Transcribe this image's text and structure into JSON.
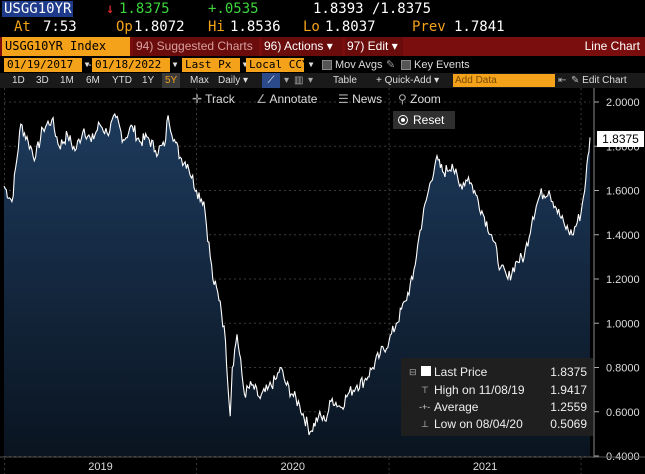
{
  "ticker": {
    "symbol": "USGG10YR",
    "arrow": "↓",
    "last": "1.8375",
    "change": "+.0535",
    "bid_ask": "1.8393 /1.8375",
    "at_label": "At",
    "at_time": "7:53",
    "op_label": "Op",
    "op_value": "1.8072",
    "hi_label": "Hi",
    "hi_value": "1.8536",
    "lo_label": "Lo",
    "lo_value": "1.8037",
    "prev_label": "Prev",
    "prev_value": "1.7841"
  },
  "menubar": {
    "index": "USGG10YR Index",
    "suggested": "94) Suggested Charts",
    "actions": "96) Actions ▾",
    "edit": "97) Edit ▾",
    "title": "Line Chart"
  },
  "fields": {
    "start_date": "01/19/2017",
    "end_date": "01/18/2022",
    "price": "Last Px",
    "currency": "Local CCY",
    "mov_avgs": "Mov Avgs",
    "key_events": "Key Events"
  },
  "ranges": {
    "items": [
      "1D",
      "3D",
      "1M",
      "6M",
      "YTD",
      "1Y",
      "5Y",
      "Max"
    ],
    "selected": "5Y",
    "freq": "Daily ▾",
    "table": "Table",
    "quick_add": "+ Quick-Add ▾",
    "add_data": "Add Data",
    "edit_chart": "Edit Chart"
  },
  "toolbar": {
    "track": "Track",
    "annotate": "Annotate",
    "news": "News",
    "zoom": "Zoom",
    "reset": "Reset"
  },
  "colors": {
    "line": "#ffffff",
    "fill_top": "#1d3a5c",
    "fill_bottom": "#0a1420",
    "grid": "#3a3a3a",
    "menu_bg": "#7a0e0e",
    "field_bg": "#f4a21a"
  },
  "legend": {
    "last_label": "Last Price",
    "last_value": "1.8375",
    "high_label": "High on 11/08/19",
    "high_value": "1.9417",
    "avg_label": "Average",
    "avg_value": "1.2559",
    "low_label": "Low on 08/04/20",
    "low_value": "0.5069"
  },
  "chart_data": {
    "type": "area",
    "y_ticks": [
      "2.0000",
      "1.8000",
      "1.6000",
      "1.4000",
      "1.2000",
      "1.0000",
      "0.8000",
      "0.6000",
      "0.4000"
    ],
    "x_ticks": [
      "2019",
      "2020",
      "2021"
    ],
    "ylim": [
      0.4,
      2.0
    ],
    "last_label": "1.8375",
    "series": [
      {
        "x": [
          "2018-12-31",
          "2019-01-15",
          "2019-02-01",
          "2019-02-15",
          "2019-03-01",
          "2019-03-15",
          "2019-04-01",
          "2019-04-15",
          "2019-05-01",
          "2019-05-15",
          "2019-06-01",
          "2019-06-15",
          "2019-07-01",
          "2019-07-15",
          "2019-08-01",
          "2019-08-15",
          "2019-09-01",
          "2019-09-15",
          "2019-10-01",
          "2019-10-15",
          "2019-11-01",
          "2019-11-08",
          "2019-11-20",
          "2019-12-01",
          "2019-12-15",
          "2020-01-01",
          "2020-01-15",
          "2020-02-01",
          "2020-02-15",
          "2020-02-25",
          "2020-03-05",
          "2020-03-09",
          "2020-03-18",
          "2020-04-01",
          "2020-04-15",
          "2020-05-01",
          "2020-05-15",
          "2020-06-01",
          "2020-06-08",
          "2020-06-20",
          "2020-07-01",
          "2020-07-15",
          "2020-08-04",
          "2020-08-20",
          "2020-09-01",
          "2020-09-15",
          "2020-10-01",
          "2020-10-15",
          "2020-11-01",
          "2020-11-15",
          "2020-12-01",
          "2020-12-15",
          "2021-01-01",
          "2021-01-15",
          "2021-02-01",
          "2021-02-15",
          "2021-03-01",
          "2021-03-15",
          "2021-03-31",
          "2021-04-15",
          "2021-05-01",
          "2021-05-15",
          "2021-06-01",
          "2021-06-15",
          "2021-07-01",
          "2021-07-15",
          "2021-08-01",
          "2021-08-15",
          "2021-09-01",
          "2021-09-15",
          "2021-10-01",
          "2021-10-15",
          "2021-11-01",
          "2021-11-15",
          "2021-12-01",
          "2021-12-15",
          "2022-01-01",
          "2022-01-10",
          "2022-01-18"
        ],
        "y": [
          1.62,
          1.55,
          1.9,
          1.82,
          1.75,
          1.88,
          1.92,
          1.8,
          1.85,
          1.78,
          1.88,
          1.82,
          1.9,
          1.86,
          1.93,
          1.83,
          1.89,
          1.82,
          1.84,
          1.78,
          1.8,
          1.94,
          1.83,
          1.75,
          1.72,
          1.6,
          1.55,
          1.2,
          1.1,
          0.92,
          0.58,
          0.8,
          0.95,
          0.68,
          0.72,
          0.66,
          0.7,
          0.75,
          0.8,
          0.72,
          0.68,
          0.63,
          0.51,
          0.58,
          0.56,
          0.66,
          0.62,
          0.68,
          0.72,
          0.74,
          0.8,
          0.86,
          0.92,
          1.0,
          1.1,
          1.2,
          1.42,
          1.58,
          1.74,
          1.68,
          1.72,
          1.62,
          1.66,
          1.58,
          1.48,
          1.4,
          1.25,
          1.2,
          1.28,
          1.3,
          1.48,
          1.58,
          1.6,
          1.52,
          1.44,
          1.4,
          1.5,
          1.65,
          1.84
        ]
      }
    ]
  }
}
